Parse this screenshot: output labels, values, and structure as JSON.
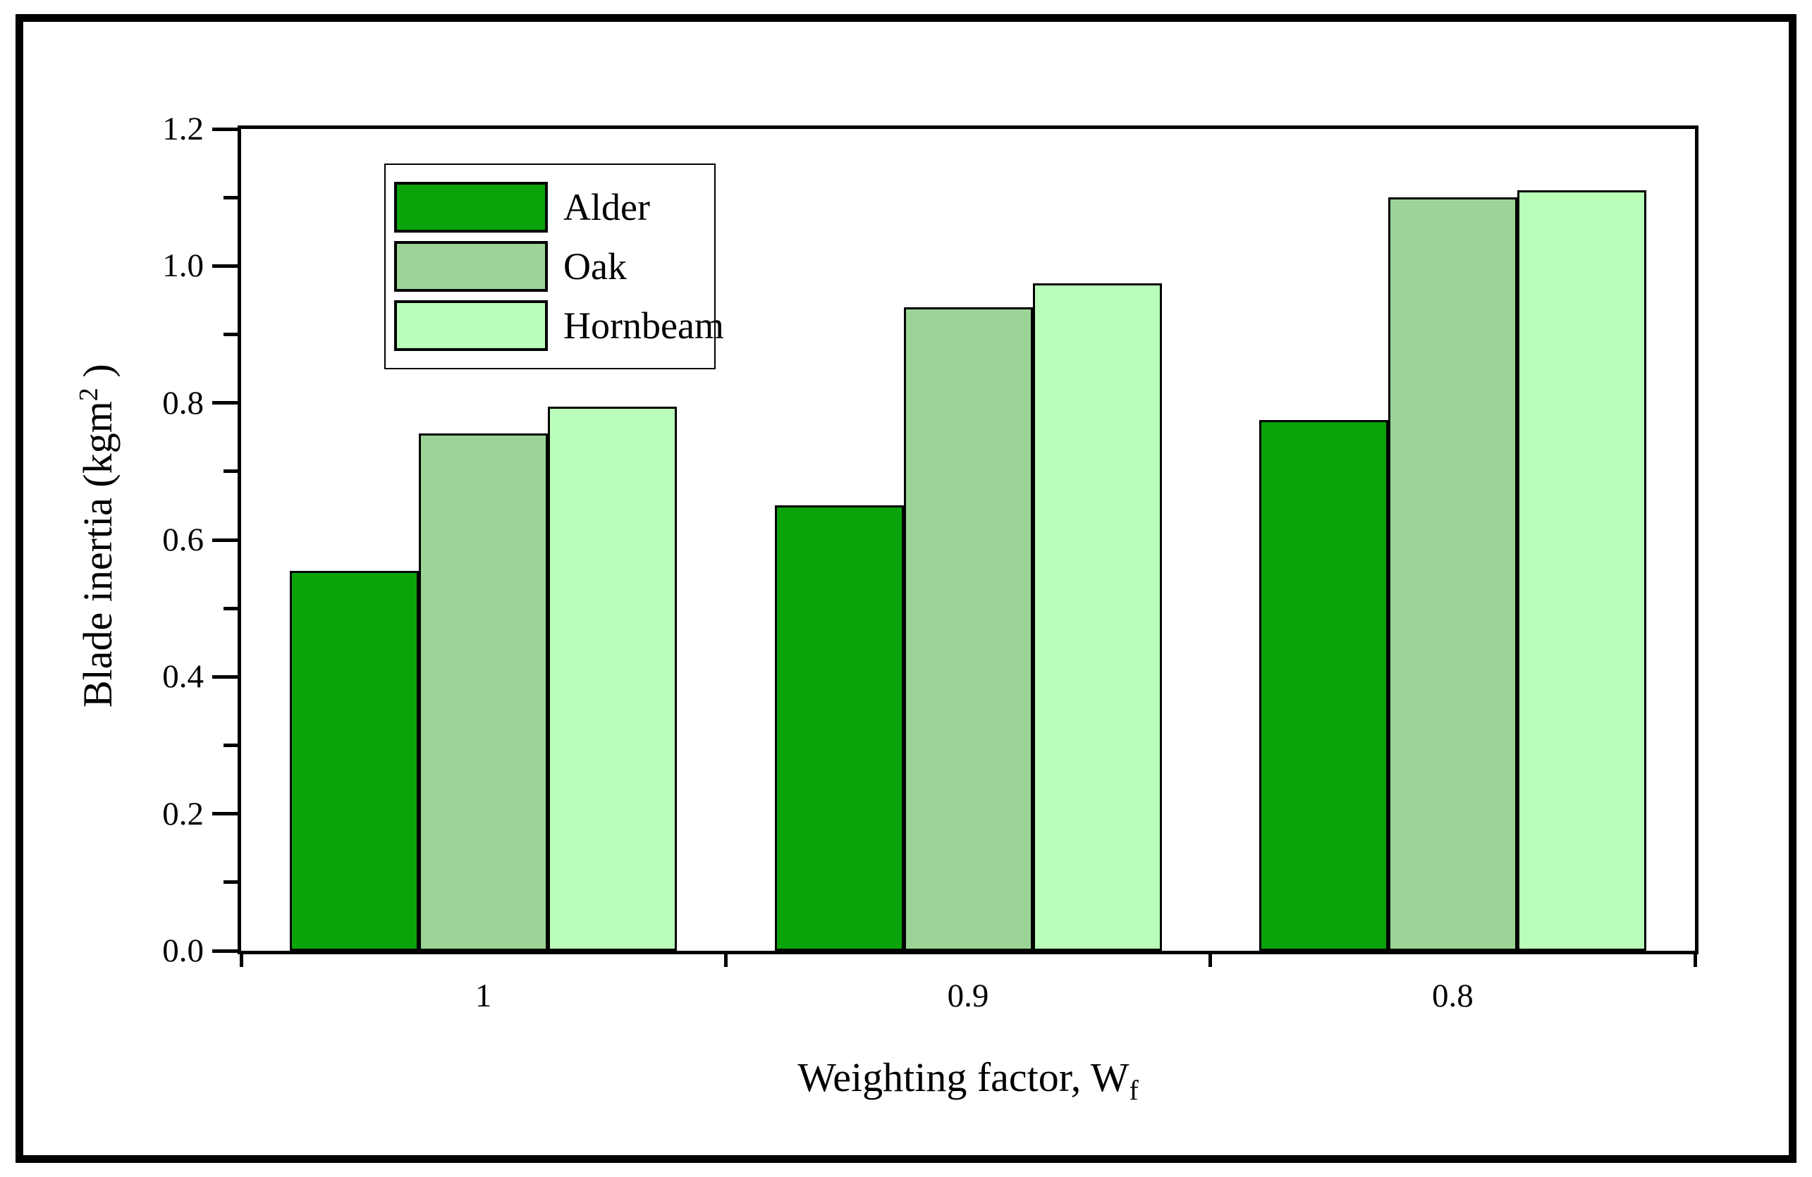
{
  "chart_data": {
    "type": "bar",
    "categories": [
      "1",
      "0.9",
      "0.8"
    ],
    "series": [
      {
        "name": "Alder",
        "color": "#0aa30a",
        "values": [
          0.555,
          0.65,
          0.775
        ]
      },
      {
        "name": "Oak",
        "color": "#9bd496",
        "values": [
          0.755,
          0.94,
          1.1
        ]
      },
      {
        "name": "Hornbeam",
        "color": "#b9ffb9",
        "values": [
          0.795,
          0.975,
          1.11
        ]
      }
    ],
    "title": "",
    "xlabel": "Weighting factor, Wf",
    "ylabel": "Blade inertia (kgm2 )",
    "ylim": [
      0,
      1.2
    ],
    "yticks": [
      "0.0",
      "0.2",
      "0.4",
      "0.6",
      "0.8",
      "1.0",
      "1.2"
    ],
    "ytick_step": 0.2,
    "yminor_step": 0.1,
    "grid": false,
    "legend_position": "upper-left-inside",
    "bar_edge_color": "#000000",
    "axis_color": "#000000"
  },
  "labels": {
    "ylabel_main": "Blade inertia (kgm",
    "ylabel_sup": "2",
    "ylabel_close": " )",
    "xlabel_main": "Weighting factor, W",
    "xlabel_sub": "f"
  }
}
